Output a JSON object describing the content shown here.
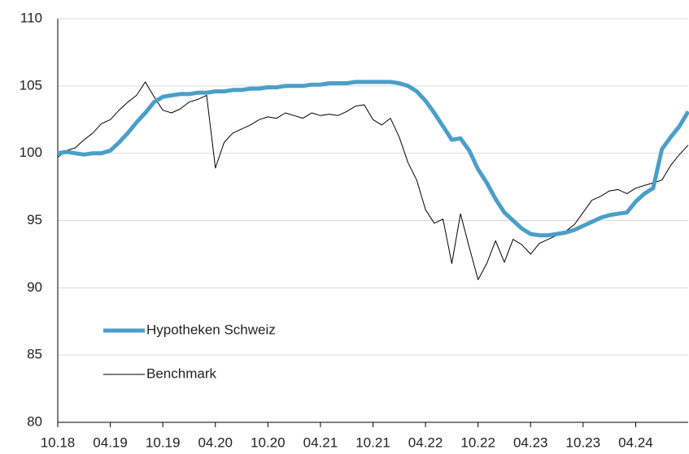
{
  "chart_data": {
    "type": "line",
    "categories": [
      "10.18",
      null,
      null,
      null,
      null,
      null,
      "04.19",
      null,
      null,
      null,
      null,
      null,
      "10.19",
      null,
      null,
      null,
      null,
      null,
      "04.20",
      null,
      null,
      null,
      null,
      null,
      "10.20",
      null,
      null,
      null,
      null,
      null,
      "04.21",
      null,
      null,
      null,
      null,
      null,
      "10.21",
      null,
      null,
      null,
      null,
      null,
      "04.22",
      null,
      null,
      null,
      null,
      null,
      "10.22",
      null,
      null,
      null,
      null,
      null,
      "04.23",
      null,
      null,
      null,
      null,
      null,
      "10.23",
      null,
      null,
      null,
      null,
      null,
      "04.24",
      null,
      null,
      null,
      null,
      null,
      null
    ],
    "series": [
      {
        "name": "Hypotheken Schweiz",
        "color": "#4a9fc8",
        "values": [
          100.0,
          100.1,
          100.0,
          99.9,
          100.0,
          100.0,
          100.2,
          100.8,
          101.5,
          102.3,
          103.0,
          103.8,
          104.2,
          104.3,
          104.4,
          104.4,
          104.5,
          104.5,
          104.6,
          104.6,
          104.7,
          104.7,
          104.8,
          104.8,
          104.9,
          104.9,
          105.0,
          105.0,
          105.0,
          105.1,
          105.1,
          105.2,
          105.2,
          105.2,
          105.3,
          105.3,
          105.3,
          105.3,
          105.3,
          105.2,
          105.0,
          104.6,
          103.9,
          103.0,
          102.0,
          101.0,
          101.1,
          100.2,
          98.8,
          97.8,
          96.6,
          95.6,
          95.0,
          94.4,
          94.0,
          93.9,
          93.9,
          94.0,
          94.1,
          94.3,
          94.6,
          94.9,
          95.2,
          95.4,
          95.5,
          95.6,
          96.4,
          97.0,
          97.4,
          100.3,
          101.2,
          102.0,
          103.1
        ]
      },
      {
        "name": "Benchmark",
        "color": "#000000",
        "values": [
          99.7,
          100.2,
          100.4,
          101.0,
          101.5,
          102.2,
          102.5,
          103.2,
          103.8,
          104.3,
          105.3,
          104.2,
          103.2,
          103.0,
          103.3,
          103.8,
          104.0,
          104.3,
          98.9,
          100.8,
          101.5,
          101.8,
          102.1,
          102.5,
          102.7,
          102.6,
          103.0,
          102.8,
          102.6,
          103.0,
          102.8,
          102.9,
          102.8,
          103.1,
          103.5,
          103.6,
          102.5,
          102.1,
          102.6,
          101.2,
          99.3,
          98.0,
          95.8,
          94.8,
          95.1,
          91.8,
          95.5,
          93.0,
          90.6,
          91.8,
          93.5,
          91.9,
          93.6,
          93.2,
          92.5,
          93.3,
          93.6,
          93.9,
          94.2,
          94.7,
          95.6,
          96.5,
          96.8,
          97.2,
          97.3,
          97.0,
          97.4,
          97.6,
          97.8,
          98.0,
          99.1,
          99.9,
          100.6
        ]
      }
    ],
    "ylim": [
      80,
      110
    ],
    "yticks": [
      80,
      85,
      90,
      95,
      100,
      105,
      110
    ],
    "grid": true,
    "legend": "lower left"
  }
}
